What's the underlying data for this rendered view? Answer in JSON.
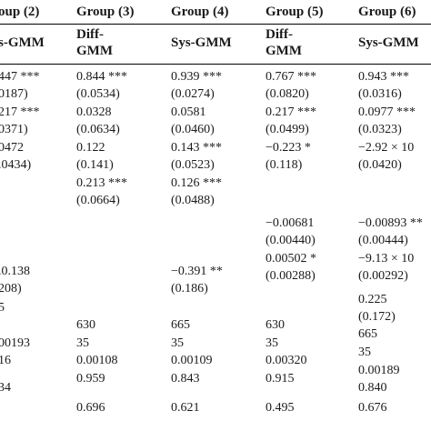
{
  "headers": [
    "oup (2)",
    "Group (3)",
    "Group (4)",
    "Group (5)",
    "Group (6)"
  ],
  "subheaders": [
    [
      "s-GMM"
    ],
    [
      "Diff-",
      "GMM"
    ],
    [
      "Sys-GMM"
    ],
    [
      "Diff-",
      "GMM"
    ],
    [
      "Sys-GMM"
    ]
  ],
  "columns": [
    [
      "447 ***",
      "0187)",
      "217 ***",
      "0371)",
      "0472",
      ".0434)",
      ".0.138",
      "208)",
      "5",
      "",
      "00193",
      "16",
      "",
      "34"
    ],
    [
      "0.844 ***",
      "(0.0534)",
      "0.0328",
      "(0.0634)",
      "0.122",
      "(0.141)",
      "0.213 ***",
      "(0.0664)",
      "630",
      "35",
      "0.00108",
      "0.959",
      "0.696"
    ],
    [
      "0.939 ***",
      "(0.0274)",
      "0.0581",
      "(0.0460)",
      "0.143 ***",
      "(0.0523)",
      "0.126 ***",
      "(0.0488)",
      "−0.391 **",
      "(0.186)",
      "665",
      "35",
      "0.00109",
      "0.843",
      "0.621"
    ],
    [
      "0.767 ***",
      "(0.0820)",
      "0.217 ***",
      "(0.0499)",
      "−0.223 *",
      "(0.118)",
      "−0.00681",
      "(0.00440)",
      "0.00502 *",
      "(0.00288)",
      "630",
      "35",
      "0.00320",
      "0.915",
      "0.495"
    ],
    [
      "0.943 ***",
      "(0.0316)",
      "0.0977 ***",
      "(0.0323)",
      "−2.92 × 10",
      "(0.0420)",
      "−0.00893 **",
      "(0.00444)",
      "−9.13 × 10",
      "(0.00292)",
      "0.225",
      "(0.172)",
      "665",
      "35",
      "0.00189",
      "0.840",
      "0.676"
    ]
  ]
}
